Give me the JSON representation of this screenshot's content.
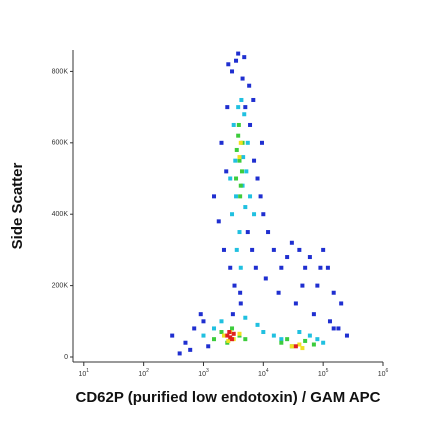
{
  "chart_data": {
    "type": "scatter",
    "x_label": "CD62P (purified low endotoxin) / GAM APC",
    "y_label": "Side Scatter",
    "xscale": "log",
    "xlim": [
      6.6,
      1000000
    ],
    "xticks": [
      {
        "value": 10,
        "label": "10",
        "superscript": "1"
      },
      {
        "value": 100,
        "label": "10",
        "superscript": "2"
      },
      {
        "value": 1000,
        "label": "10",
        "superscript": "3"
      },
      {
        "value": 10000,
        "label": "10",
        "superscript": "4"
      },
      {
        "value": 100000,
        "label": "10",
        "superscript": "5"
      },
      {
        "value": 1000000,
        "label": "10",
        "superscript": "6"
      }
    ],
    "ylim": [
      -14000,
      860000
    ],
    "yticks": [
      0,
      {
        "value": 200000,
        "label": "200K"
      },
      {
        "value": 400000,
        "label": "400K"
      },
      {
        "value": 600000,
        "label": "600K"
      },
      {
        "value": 800000,
        "label": "800K"
      }
    ],
    "series": [
      {
        "color": "#1f2fd0",
        "x": [
          1500,
          2000,
          2500,
          3000,
          3500,
          4500,
          5000,
          6000,
          7000,
          8000,
          9000,
          10000,
          2200,
          2800,
          3300,
          4200,
          5500,
          6500,
          7500,
          1800,
          12000,
          15000,
          20000,
          25000,
          30000,
          40000,
          50000,
          60000,
          80000,
          100000,
          120000,
          150000,
          200000,
          300,
          500,
          700,
          1000,
          1200,
          150000,
          250000,
          2600,
          3800,
          4800,
          5800,
          6800,
          3100,
          4100,
          2400,
          9500,
          11000,
          18000,
          35000,
          45000,
          70000,
          90000,
          130000,
          180000,
          600,
          900,
          400
        ],
        "values": [
          450000,
          600000,
          700000,
          800000,
          830000,
          780000,
          700000,
          650000,
          550000,
          500000,
          450000,
          400000,
          300000,
          250000,
          200000,
          150000,
          350000,
          300000,
          250000,
          380000,
          350000,
          300000,
          250000,
          280000,
          320000,
          300000,
          250000,
          280000,
          200000,
          300000,
          250000,
          180000,
          150000,
          60000,
          40000,
          80000,
          100000,
          30000,
          80000,
          60000,
          820000,
          850000,
          840000,
          760000,
          720000,
          120000,
          180000,
          520000,
          600000,
          220000,
          180000,
          150000,
          200000,
          120000,
          250000,
          100000,
          80000,
          20000,
          120000,
          10000
        ]
      },
      {
        "color": "#20c0e0",
        "x": [
          3000,
          3500,
          4000,
          4500,
          5000,
          3200,
          3800,
          4300,
          4800,
          5500,
          2800,
          3600,
          4200,
          6000,
          7000,
          1000,
          1500,
          2000,
          5000,
          8000,
          10000,
          15000,
          20000,
          40000,
          60000,
          80000,
          100000,
          3400,
          4600,
          5200
        ],
        "values": [
          400000,
          450000,
          350000,
          480000,
          420000,
          650000,
          700000,
          720000,
          680000,
          600000,
          500000,
          300000,
          250000,
          450000,
          400000,
          60000,
          80000,
          100000,
          110000,
          90000,
          70000,
          60000,
          50000,
          70000,
          60000,
          50000,
          40000,
          550000,
          560000,
          520000
        ]
      },
      {
        "color": "#3ccc3c",
        "x": [
          3500,
          4000,
          4500,
          3800,
          4200,
          3600,
          4400,
          3900,
          4100,
          1500,
          2000,
          4000,
          5000,
          20000,
          30000,
          50000,
          70000,
          3000,
          2500,
          25000
        ],
        "values": [
          500000,
          550000,
          600000,
          620000,
          480000,
          580000,
          520000,
          650000,
          450000,
          50000,
          70000,
          60000,
          50000,
          40000,
          30000,
          45000,
          35000,
          80000,
          40000,
          50000
        ]
      },
      {
        "color": "#f0e020",
        "x": [
          2200,
          2800,
          3200,
          4000,
          30000,
          40000,
          45000,
          4000,
          4200,
          2600
        ],
        "values": [
          60000,
          70000,
          50000,
          65000,
          30000,
          35000,
          25000,
          560000,
          600000,
          45000
        ]
      },
      {
        "color": "#e02020",
        "x": [
          2500,
          2800,
          3200,
          2700,
          3000,
          35000
        ],
        "values": [
          60000,
          55000,
          65000,
          70000,
          50000,
          30000
        ]
      }
    ]
  }
}
